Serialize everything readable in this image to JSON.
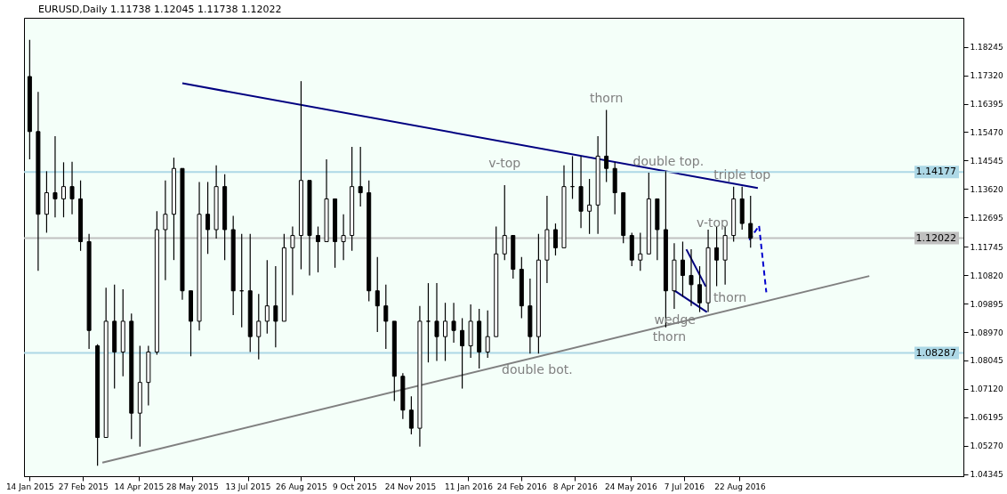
{
  "chart_data": {
    "type": "candlestick",
    "title": "EURUSD,Daily  1.11738 1.12045 1.11738 1.12022",
    "xlim": [
      "2015-01-13",
      "2017-02-19"
    ],
    "xticks": [
      {
        "value": "2015-01-14",
        "label": "14 Jan 2015"
      },
      {
        "value": "2015-02-27",
        "label": "27 Feb 2015"
      },
      {
        "value": "2015-04-14",
        "label": "14 Apr 2015"
      },
      {
        "value": "2015-05-28",
        "label": "28 May 2015"
      },
      {
        "value": "2015-07-13",
        "label": "13 Jul 2015"
      },
      {
        "value": "2015-08-26",
        "label": "26 Aug 2015"
      },
      {
        "value": "2015-10-09",
        "label": "9 Oct 2015"
      },
      {
        "value": "2015-11-24",
        "label": "24 Nov 2015"
      },
      {
        "value": "2016-01-11",
        "label": "11 Jan 2016"
      },
      {
        "value": "2016-02-24",
        "label": "24 Feb 2016"
      },
      {
        "value": "2016-04-08",
        "label": "8 Apr 2016"
      },
      {
        "value": "2016-05-24",
        "label": "24 May 2016"
      },
      {
        "value": "2016-07-07",
        "label": "7 Jul 2016"
      },
      {
        "value": "2016-08-22",
        "label": "22 Aug 2016"
      }
    ],
    "ylim": [
      1.0428,
      1.1919
    ],
    "yticks": [
      1.18245,
      {
        "value": 1.1732,
        "label": "1.17320"
      },
      1.16395,
      {
        "value": 1.1547,
        "label": "1.15470"
      },
      1.14545,
      {
        "value": 1.1362,
        "label": "1.13620"
      },
      1.12695,
      1.11745,
      {
        "value": 1.1082,
        "label": "1.10820"
      },
      1.09895,
      {
        "value": 1.0897,
        "label": "1.08970"
      },
      1.08045,
      {
        "value": 1.0712,
        "label": "1.07120"
      },
      1.06195,
      {
        "value": 1.0527,
        "label": "1.05270"
      },
      1.04345
    ],
    "grid": false,
    "series": [
      {
        "color": "#000000",
        "x": [
          "2015-01-14",
          "2015-01-21",
          "2015-01-28",
          "2015-02-04",
          "2015-02-11",
          "2015-02-18",
          "2015-02-25",
          "2015-03-04",
          "2015-03-11",
          "2015-03-18",
          "2015-03-25",
          "2015-04-01",
          "2015-04-08",
          "2015-04-15",
          "2015-04-22",
          "2015-04-29",
          "2015-05-06",
          "2015-05-13",
          "2015-05-20",
          "2015-05-27",
          "2015-06-03",
          "2015-06-10",
          "2015-06-17",
          "2015-06-24",
          "2015-07-01",
          "2015-07-08",
          "2015-07-15",
          "2015-07-22",
          "2015-07-29",
          "2015-08-05",
          "2015-08-12",
          "2015-08-19",
          "2015-08-26",
          "2015-09-02",
          "2015-09-09",
          "2015-09-16",
          "2015-09-23",
          "2015-09-30",
          "2015-10-07",
          "2015-10-14",
          "2015-10-21",
          "2015-10-28",
          "2015-11-04",
          "2015-11-11",
          "2015-11-18",
          "2015-11-25",
          "2015-12-02",
          "2015-12-09",
          "2015-12-16",
          "2015-12-23",
          "2015-12-30",
          "2016-01-06",
          "2016-01-13",
          "2016-01-20",
          "2016-01-27",
          "2016-02-03",
          "2016-02-10",
          "2016-02-17",
          "2016-02-24",
          "2016-03-02",
          "2016-03-09",
          "2016-03-16",
          "2016-03-23",
          "2016-03-30",
          "2016-04-06",
          "2016-04-13",
          "2016-04-20",
          "2016-04-27",
          "2016-05-04",
          "2016-05-11",
          "2016-05-18",
          "2016-05-25",
          "2016-06-01",
          "2016-06-08",
          "2016-06-15",
          "2016-06-22",
          "2016-06-29",
          "2016-07-06",
          "2016-07-13",
          "2016-07-20",
          "2016-07-27",
          "2016-08-03",
          "2016-08-10",
          "2016-08-17",
          "2016-08-24",
          "2016-08-31"
        ],
        "ohlc": [
          [
            1.1728,
            1.1847,
            1.1459,
            1.1549
          ],
          [
            1.1549,
            1.1678,
            1.1096,
            1.128
          ],
          [
            1.128,
            1.142,
            1.122,
            1.135
          ],
          [
            1.135,
            1.1534,
            1.127,
            1.133
          ],
          [
            1.133,
            1.1449,
            1.127,
            1.137
          ],
          [
            1.137,
            1.1451,
            1.128,
            1.133
          ],
          [
            1.133,
            1.139,
            1.1161,
            1.1191
          ],
          [
            1.1191,
            1.1216,
            1.0842,
            1.0902
          ],
          [
            1.0852,
            1.0857,
            1.0462,
            1.0554
          ],
          [
            1.0554,
            1.1041,
            1.0554,
            1.0932
          ],
          [
            1.0932,
            1.1051,
            1.0713,
            1.0832
          ],
          [
            1.0832,
            1.1036,
            1.0753,
            1.0932
          ],
          [
            1.0932,
            1.0957,
            1.0549,
            1.0633
          ],
          [
            1.0633,
            1.0852,
            1.0524,
            1.0733
          ],
          [
            1.0733,
            1.0852,
            1.0658,
            1.0832
          ],
          [
            1.0832,
            1.129,
            1.0823,
            1.123
          ],
          [
            1.123,
            1.139,
            1.1066,
            1.128
          ],
          [
            1.128,
            1.1464,
            1.1131,
            1.1429
          ],
          [
            1.1429,
            1.1429,
            1.1002,
            1.1031
          ],
          [
            1.1031,
            1.1031,
            1.0818,
            1.0932
          ],
          [
            1.0932,
            1.1385,
            1.0902,
            1.128
          ],
          [
            1.128,
            1.1385,
            1.1151,
            1.123
          ],
          [
            1.123,
            1.1439,
            1.1201,
            1.137
          ],
          [
            1.137,
            1.141,
            1.1131,
            1.123
          ],
          [
            1.123,
            1.1275,
            1.0952,
            1.1031
          ],
          [
            1.1031,
            1.1216,
            1.0912,
            1.1031
          ],
          [
            1.1031,
            1.1216,
            1.0832,
            1.0882
          ],
          [
            1.0882,
            1.1021,
            1.0808,
            1.0932
          ],
          [
            1.0932,
            1.1131,
            1.0892,
            1.0982
          ],
          [
            1.0982,
            1.1111,
            1.0847,
            1.0932
          ],
          [
            1.0932,
            1.1216,
            1.0932,
            1.1171
          ],
          [
            1.1171,
            1.124,
            1.1017,
            1.1211
          ],
          [
            1.1211,
            1.1713,
            1.1101,
            1.139
          ],
          [
            1.139,
            1.139,
            1.1081,
            1.1211
          ],
          [
            1.1211,
            1.124,
            1.1091,
            1.1191
          ],
          [
            1.1191,
            1.1459,
            1.1191,
            1.133
          ],
          [
            1.133,
            1.133,
            1.1106,
            1.1191
          ],
          [
            1.1191,
            1.128,
            1.1131,
            1.1211
          ],
          [
            1.1211,
            1.1499,
            1.1161,
            1.137
          ],
          [
            1.137,
            1.1499,
            1.1305,
            1.135
          ],
          [
            1.135,
            1.139,
            1.0997,
            1.1031
          ],
          [
            1.1031,
            1.1141,
            1.0897,
            1.0982
          ],
          [
            1.0982,
            1.1051,
            1.0842,
            1.0932
          ],
          [
            1.0932,
            1.0932,
            1.0673,
            1.0753
          ],
          [
            1.0753,
            1.0763,
            1.0614,
            1.0643
          ],
          [
            1.0643,
            1.0688,
            1.0564,
            1.0584
          ],
          [
            1.0584,
            1.0982,
            1.0524,
            1.0932
          ],
          [
            1.0932,
            1.1056,
            1.0798,
            1.0932
          ],
          [
            1.0932,
            1.1056,
            1.0803,
            1.0882
          ],
          [
            1.0882,
            1.0992,
            1.0803,
            1.0932
          ],
          [
            1.0932,
            1.0992,
            1.0862,
            1.0902
          ],
          [
            1.0902,
            1.0942,
            1.0713,
            1.0852
          ],
          [
            1.0852,
            1.0987,
            1.0813,
            1.0932
          ],
          [
            1.0932,
            1.0972,
            1.0778,
            1.0832
          ],
          [
            1.0832,
            1.0967,
            1.0813,
            1.0882
          ],
          [
            1.0882,
            1.124,
            1.0882,
            1.1151
          ],
          [
            1.1151,
            1.1375,
            1.1131,
            1.1211
          ],
          [
            1.1211,
            1.1211,
            1.1071,
            1.1101
          ],
          [
            1.1101,
            1.1141,
            1.0942,
            1.0982
          ],
          [
            1.0982,
            1.1071,
            1.0827,
            1.0882
          ],
          [
            1.0882,
            1.1216,
            1.0827,
            1.1131
          ],
          [
            1.1131,
            1.134,
            1.1056,
            1.123
          ],
          [
            1.123,
            1.125,
            1.1146,
            1.1171
          ],
          [
            1.1171,
            1.1439,
            1.1171,
            1.137
          ],
          [
            1.137,
            1.1469,
            1.133,
            1.137
          ],
          [
            1.137,
            1.1469,
            1.1235,
            1.129
          ],
          [
            1.129,
            1.1395,
            1.1216,
            1.131
          ],
          [
            1.131,
            1.1534,
            1.1216,
            1.1469
          ],
          [
            1.1469,
            1.1619,
            1.1385,
            1.1429
          ],
          [
            1.1429,
            1.1449,
            1.128,
            1.135
          ],
          [
            1.135,
            1.135,
            1.1186,
            1.1211
          ],
          [
            1.1211,
            1.122,
            1.1111,
            1.1131
          ],
          [
            1.1131,
            1.122,
            1.1096,
            1.1151
          ],
          [
            1.1151,
            1.1415,
            1.1151,
            1.133
          ],
          [
            1.133,
            1.133,
            1.1131,
            1.123
          ],
          [
            1.123,
            1.142,
            1.0912,
            1.1031
          ],
          [
            1.1031,
            1.1186,
            1.0972,
            1.1131
          ],
          [
            1.1131,
            1.1191,
            1.1012,
            1.1081
          ],
          [
            1.1081,
            1.1166,
            1.0982,
            1.1051
          ],
          [
            1.1051,
            1.1111,
            1.0962,
            1.0992
          ],
          [
            1.0992,
            1.123,
            1.0962,
            1.1171
          ],
          [
            1.1171,
            1.124,
            1.1046,
            1.1131
          ],
          [
            1.1131,
            1.124,
            1.1051,
            1.1211
          ],
          [
            1.1211,
            1.137,
            1.1191,
            1.133
          ],
          [
            1.133,
            1.137,
            1.123,
            1.125
          ],
          [
            1.125,
            1.134,
            1.1171,
            1.1202
          ]
        ]
      },
      {
        "type": "line",
        "color": "#000080",
        "line_style": "solid",
        "x": [
          "2015-05-20",
          "2016-09-06"
        ],
        "values": [
          1.1706,
          1.1365
        ]
      },
      {
        "type": "line",
        "color": "#808080",
        "line_style": "solid",
        "x": [
          "2015-03-15",
          "2016-12-07"
        ],
        "values": [
          1.0472,
          1.1079
        ]
      },
      {
        "type": "line",
        "color": "#000080",
        "line_style": "solid",
        "x": [
          "2016-07-09",
          "2016-07-25"
        ],
        "values": [
          1.1166,
          1.1045
        ]
      },
      {
        "type": "line",
        "color": "#000080",
        "line_style": "solid",
        "x": [
          "2016-06-28",
          "2016-07-26"
        ],
        "values": [
          1.1035,
          1.0962
        ]
      },
      {
        "type": "line",
        "color": "#0000cd",
        "line_style": "dashed",
        "x": [
          "2016-08-30",
          "2016-09-07",
          "2016-09-13"
        ],
        "values": [
          1.1196,
          1.1243,
          1.1026
        ]
      }
    ],
    "ref_lines": [
      {
        "axis": "y",
        "value": 1.14177,
        "label": "1.14177",
        "color": "#add8e6"
      },
      {
        "axis": "y",
        "value": 1.08287,
        "label": "1.08287",
        "color": "#add8e6"
      },
      {
        "axis": "y",
        "value": 1.12022,
        "label": "1.12022",
        "color": "#c0c0c0"
      }
    ],
    "annotations": [
      {
        "text": "thorn",
        "x": "2016-05-04",
        "y": 1.1619
      },
      {
        "text": "v-top",
        "x": "2016-02-10",
        "y": 1.1375
      },
      {
        "text": "double top.",
        "x": "2016-06-08",
        "y": 1.1415
      },
      {
        "text": "triple top",
        "x": "2016-08-24",
        "y": 1.1383
      },
      {
        "text": "v-top",
        "x": "2016-08-04",
        "y": 1.125
      },
      {
        "text": "thorn",
        "x": "2016-07-20",
        "y": 1.0962
      },
      {
        "text": "wedge",
        "x": "2016-07-26",
        "y": 1.0962
      },
      {
        "text": "thorn",
        "x": "2016-06-22",
        "y": 1.0912
      },
      {
        "text": "double bot.",
        "x": "2016-03-02",
        "y": 1.0827
      }
    ]
  }
}
